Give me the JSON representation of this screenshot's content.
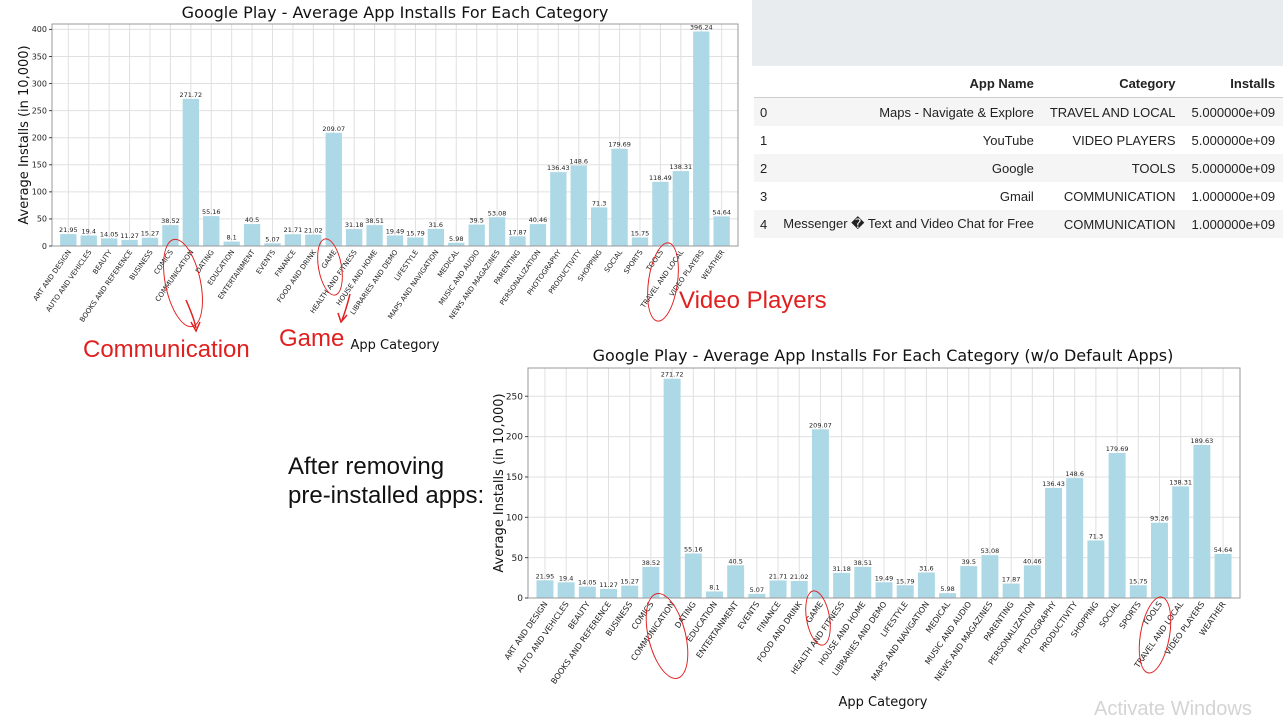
{
  "chart_data": [
    {
      "type": "bar",
      "title": "Google Play - Average App Installs For Each Category",
      "xlabel": "App Category",
      "ylabel": "Average Installs (in 10,000)",
      "ylim": [
        0,
        410
      ],
      "yticks": [
        0,
        50,
        100,
        150,
        200,
        250,
        300,
        350,
        400
      ],
      "grid": true,
      "color": "#add8e6",
      "categories": [
        "ART AND DESIGN",
        "AUTO AND VEHICLES",
        "BEAUTY",
        "BOOKS AND REFERENCE",
        "BUSINESS",
        "COMICS",
        "COMMUNICATION",
        "DATING",
        "EDUCATION",
        "ENTERTAINMENT",
        "EVENTS",
        "FINANCE",
        "FOOD AND DRINK",
        "GAME",
        "HEALTH AND FITNESS",
        "HOUSE AND HOME",
        "LIBRARIES AND DEMO",
        "LIFESTYLE",
        "MAPS AND NAVIGATION",
        "MEDICAL",
        "MUSIC AND AUDIO",
        "NEWS AND MAGAZINES",
        "PARENTING",
        "PERSONALIZATION",
        "PHOTOGRAPHY",
        "PRODUCTIVITY",
        "SHOPPING",
        "SOCIAL",
        "SPORTS",
        "TOOLS",
        "TRAVEL AND LOCAL",
        "VIDEO PLAYERS",
        "WEATHER"
      ],
      "values": [
        21.95,
        19.4,
        14.05,
        11.27,
        15.27,
        38.52,
        271.72,
        55.16,
        8.1,
        40.5,
        5.07,
        21.71,
        21.02,
        209.07,
        31.18,
        38.51,
        19.49,
        15.79,
        31.6,
        5.98,
        39.5,
        53.08,
        17.87,
        40.46,
        136.43,
        148.6,
        71.3,
        179.69,
        15.75,
        118.49,
        138.31,
        396.24,
        54.64
      ]
    },
    {
      "type": "bar",
      "title": "Google Play - Average App Installs For Each Category (w/o Default Apps)",
      "xlabel": "App Category",
      "ylabel": "Average Installs (in 10,000)",
      "ylim": [
        0,
        285
      ],
      "yticks": [
        0,
        50,
        100,
        150,
        200,
        250
      ],
      "grid": true,
      "color": "#add8e6",
      "categories": [
        "ART AND DESIGN",
        "AUTO AND VEHICLES",
        "BEAUTY",
        "BOOKS AND REFERENCE",
        "BUSINESS",
        "COMICS",
        "COMMUNICATION",
        "DATING",
        "EDUCATION",
        "ENTERTAINMENT",
        "EVENTS",
        "FINANCE",
        "FOOD AND DRINK",
        "GAME",
        "HEALTH AND FITNESS",
        "HOUSE AND HOME",
        "LIBRARIES AND DEMO",
        "LIFESTYLE",
        "MAPS AND NAVIGATION",
        "MEDICAL",
        "MUSIC AND AUDIO",
        "NEWS AND MAGAZINES",
        "PARENTING",
        "PERSONALIZATION",
        "PHOTOGRAPHY",
        "PRODUCTIVITY",
        "SHOPPING",
        "SOCIAL",
        "SPORTS",
        "TOOLS",
        "TRAVEL AND LOCAL",
        "VIDEO PLAYERS",
        "WEATHER"
      ],
      "values": [
        21.95,
        19.4,
        14.05,
        11.27,
        15.27,
        38.52,
        271.72,
        55.16,
        8.1,
        40.5,
        5.07,
        21.71,
        21.02,
        209.07,
        31.18,
        38.51,
        19.49,
        15.79,
        31.6,
        5.98,
        39.5,
        53.08,
        17.87,
        40.46,
        136.43,
        148.6,
        71.3,
        179.69,
        15.75,
        93.26,
        138.31,
        189.63,
        54.64
      ]
    }
  ],
  "table": {
    "columns": [
      "App Name",
      "Category",
      "Installs"
    ],
    "rows": [
      {
        "index": "0",
        "app": "Maps - Navigate & Explore",
        "category": "TRAVEL AND LOCAL",
        "installs": "5.000000e+09"
      },
      {
        "index": "1",
        "app": "YouTube",
        "category": "VIDEO PLAYERS",
        "installs": "5.000000e+09"
      },
      {
        "index": "2",
        "app": "Google",
        "category": "TOOLS",
        "installs": "5.000000e+09"
      },
      {
        "index": "3",
        "app": "Gmail",
        "category": "COMMUNICATION",
        "installs": "1.000000e+09"
      },
      {
        "index": "4",
        "app": "Messenger � Text and Video Chat for Free",
        "category": "COMMUNICATION",
        "installs": "1.000000e+09"
      }
    ]
  },
  "annotations": {
    "communication": "Communication",
    "game": "Game",
    "video_players": "Video Players",
    "note_line1": "After removing",
    "note_line2": "pre-installed apps:",
    "watermark": "Activate Windows",
    "accent_color": "#e02020"
  }
}
